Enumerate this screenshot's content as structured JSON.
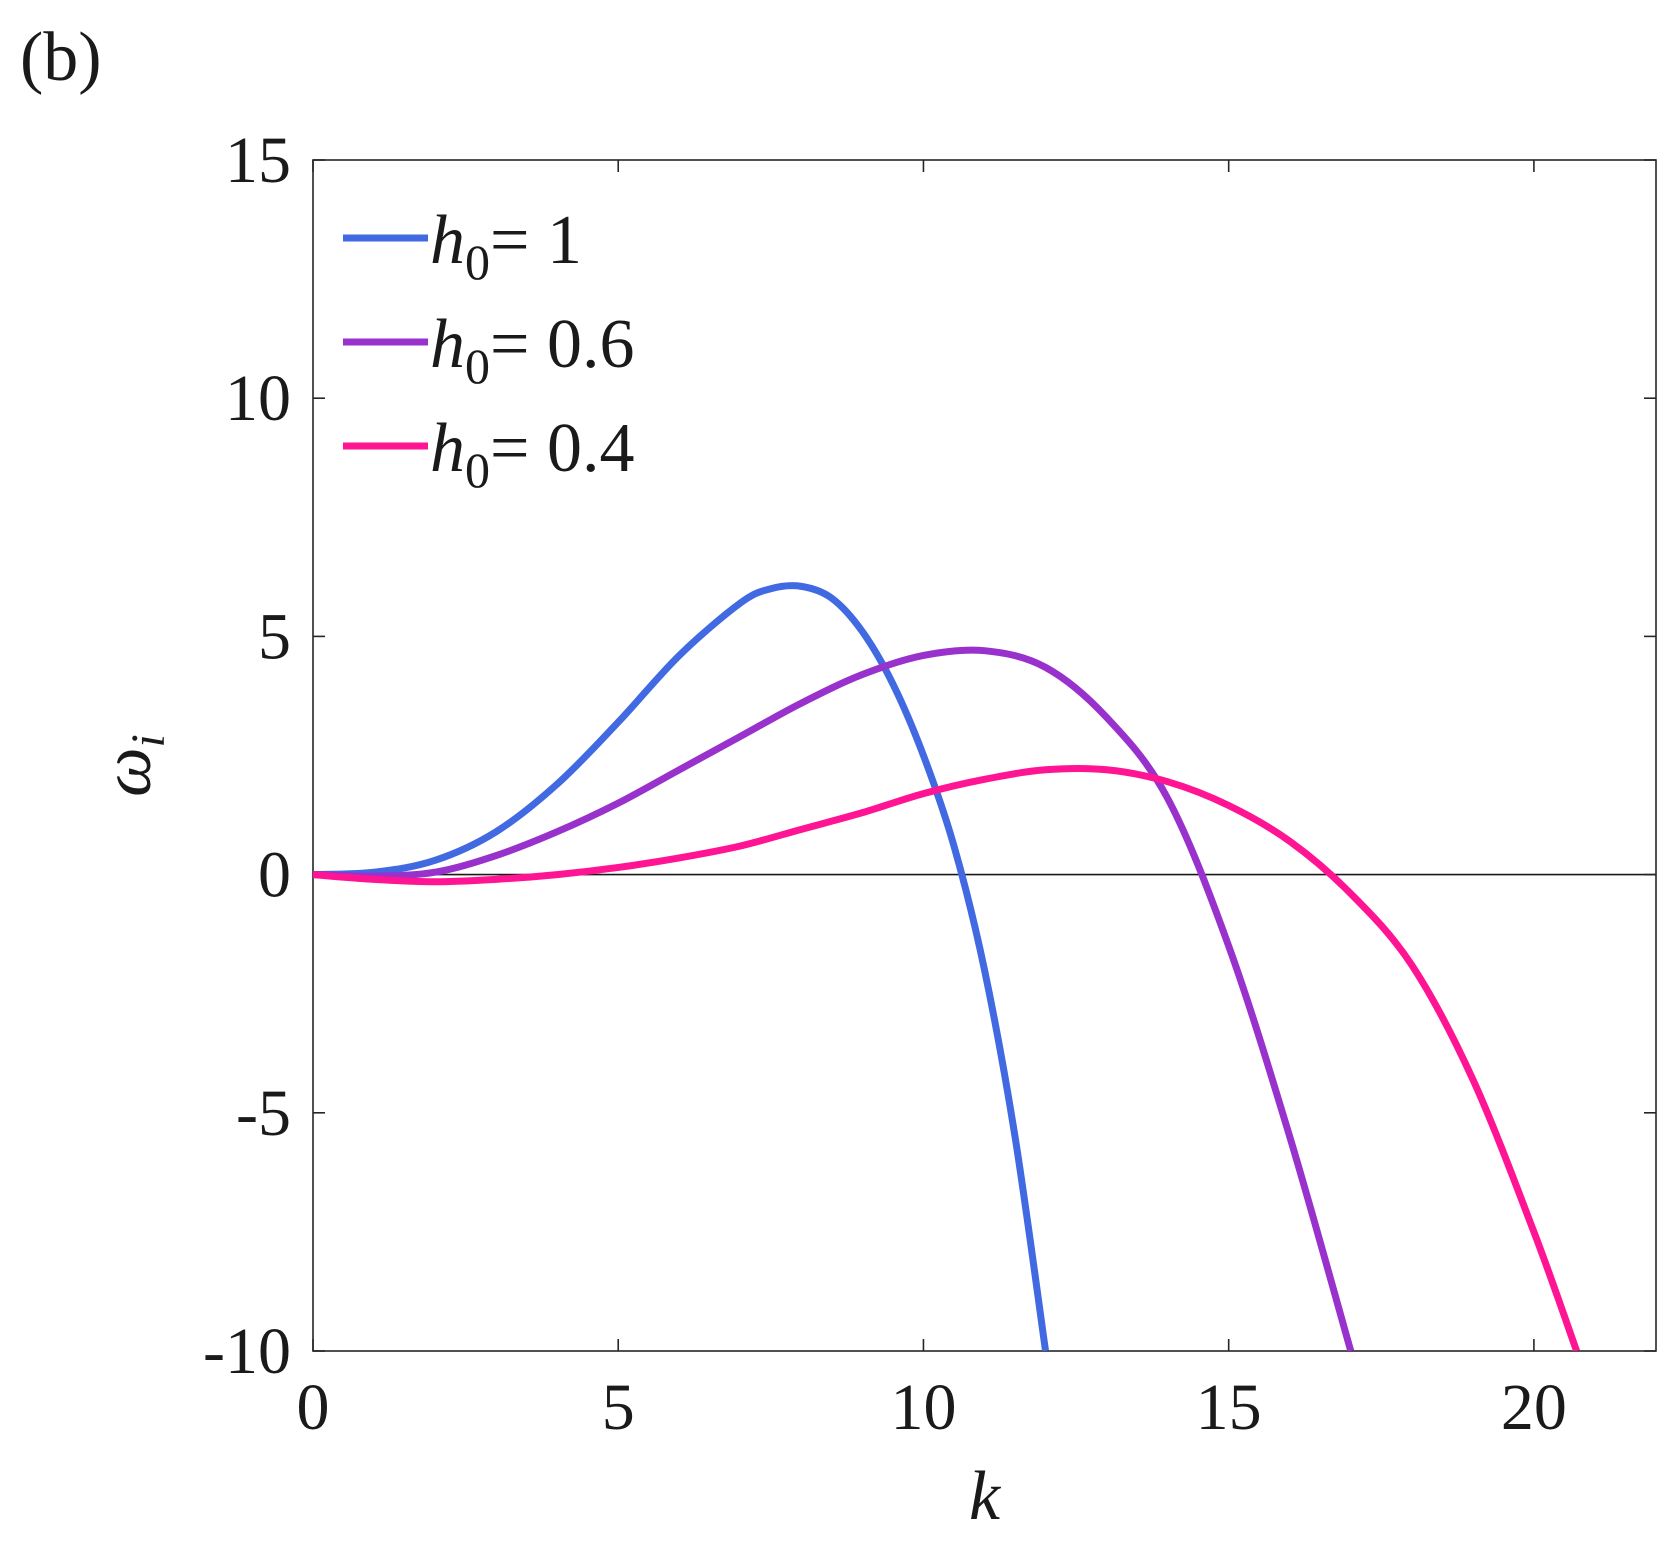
{
  "chart_data": {
    "type": "line",
    "panel_label": "(b)",
    "xlabel": "k",
    "ylabel": "ω",
    "ylabel_subscript": "i",
    "xlim": [
      0,
      22
    ],
    "ylim": [
      -10,
      15
    ],
    "xticks": [
      0,
      5,
      10,
      15,
      20
    ],
    "yticks": [
      -10,
      -5,
      0,
      5,
      10,
      15
    ],
    "xtick_labels": [
      "0",
      "5",
      "10",
      "15",
      "20"
    ],
    "ytick_labels": [
      "-10",
      "-5",
      "0",
      "5",
      "10",
      "15"
    ],
    "zero_line": true,
    "grid": false,
    "legend_position": "top-left",
    "series": [
      {
        "name": "h0= 1",
        "legend_symbol": "h",
        "legend_subscript": "0",
        "legend_value": "= 1",
        "color": "#4169e1",
        "x": [
          0,
          1,
          2,
          3,
          4,
          5,
          6,
          7,
          7.5,
          8,
          8.5,
          9,
          9.5,
          10,
          10.5,
          11,
          11.5,
          12
        ],
        "y": [
          0,
          0.05,
          0.3,
          0.9,
          1.9,
          3.2,
          4.6,
          5.7,
          6.0,
          6.05,
          5.8,
          5.1,
          4.0,
          2.5,
          0.6,
          -2.0,
          -5.5,
          -10
        ]
      },
      {
        "name": "h0= 0.6",
        "legend_symbol": "h",
        "legend_subscript": "0",
        "legend_value": "= 0.6",
        "color": "#9932cc",
        "x": [
          0,
          1,
          2,
          3,
          4,
          5,
          6,
          7,
          8,
          9,
          10,
          11,
          12,
          13,
          14,
          15,
          16,
          17
        ],
        "y": [
          0,
          -0.03,
          0.05,
          0.4,
          0.9,
          1.5,
          2.2,
          2.9,
          3.6,
          4.2,
          4.6,
          4.7,
          4.35,
          3.3,
          1.6,
          -1.5,
          -5.5,
          -10
        ]
      },
      {
        "name": "h0= 0.4",
        "legend_symbol": "h",
        "legend_subscript": "0",
        "legend_value": "= 0.4",
        "color": "#ff1493",
        "x": [
          0,
          1,
          2,
          3,
          4,
          5,
          6,
          7,
          8,
          9,
          10,
          11,
          12,
          13,
          14,
          15,
          16,
          17,
          18,
          19,
          20,
          20.7
        ],
        "y": [
          0,
          -0.1,
          -0.15,
          -0.1,
          0.0,
          0.15,
          0.35,
          0.6,
          0.95,
          1.3,
          1.7,
          2.0,
          2.2,
          2.2,
          1.95,
          1.45,
          0.7,
          -0.4,
          -1.9,
          -4.3,
          -7.5,
          -10
        ]
      }
    ]
  }
}
